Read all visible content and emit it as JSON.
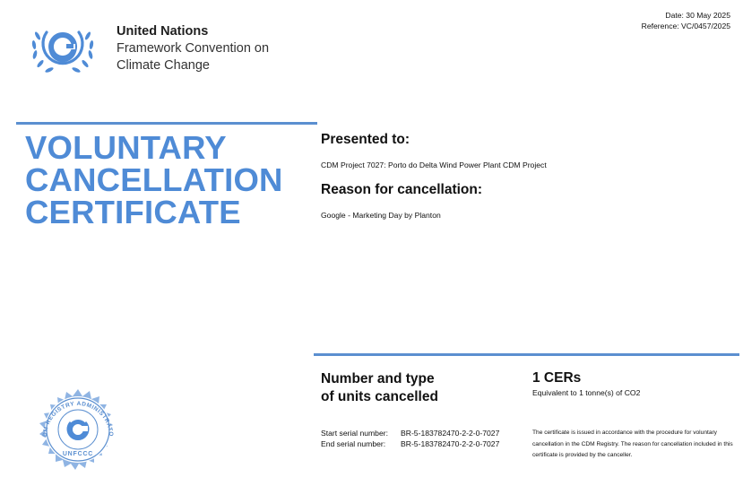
{
  "header": {
    "org_line1": "United Nations",
    "org_line2": "Framework Convention on",
    "org_line3": "Climate Change",
    "date": "Date: 30 May 2025",
    "reference": "Reference: VC/0457/2025"
  },
  "title": {
    "line1": "VOLUNTARY",
    "line2": "CANCELLATION",
    "line3": "CERTIFICATE"
  },
  "presented": {
    "heading": "Presented to:",
    "value": "CDM Project 7027: Porto do Delta Wind Power Plant CDM Project"
  },
  "reason": {
    "heading": "Reason for cancellation:",
    "value": "Google - Marketing Day by Planton"
  },
  "units": {
    "heading_line1": "Number and type",
    "heading_line2": "of units cancelled",
    "amount": "1 CERs",
    "equivalent": "Equivalent to 1 tonne(s) of CO2"
  },
  "serials": {
    "start_label": "Start serial number:",
    "start_value": "BR-5-183782470-2-2-0-7027",
    "end_label": "End serial number:",
    "end_value": "BR-5-183782470-2-2-0-7027"
  },
  "note": "The certificate is issued in accordance with the procedure for voluntary cancellation in the CDM Registry. The reason for cancellation included in this certificate is provided by the canceller.",
  "seal": {
    "text_top": "CDM REGISTRY ADMINISTRATOR",
    "text_bottom": "UNFCCC"
  },
  "colors": {
    "brand_blue": "#4f8bd6",
    "rule_blue": "#5b8fd0"
  },
  "icons": [
    "unfccc-logo-icon",
    "registry-seal-icon"
  ]
}
